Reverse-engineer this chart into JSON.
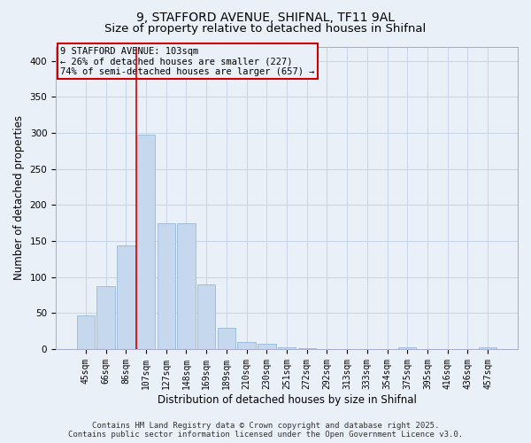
{
  "title_line1": "9, STAFFORD AVENUE, SHIFNAL, TF11 9AL",
  "title_line2": "Size of property relative to detached houses in Shifnal",
  "xlabel": "Distribution of detached houses by size in Shifnal",
  "ylabel": "Number of detached properties",
  "background_color": "#eaf0f8",
  "bar_color": "#c5d8ee",
  "bar_edge_color": "#8baed4",
  "vline_color": "#cc0000",
  "vline_x_index": 3,
  "categories": [
    "45sqm",
    "66sqm",
    "86sqm",
    "107sqm",
    "127sqm",
    "148sqm",
    "169sqm",
    "189sqm",
    "210sqm",
    "230sqm",
    "251sqm",
    "272sqm",
    "292sqm",
    "313sqm",
    "333sqm",
    "354sqm",
    "375sqm",
    "395sqm",
    "416sqm",
    "436sqm",
    "457sqm"
  ],
  "values": [
    47,
    87,
    144,
    298,
    175,
    175,
    90,
    30,
    10,
    7,
    3,
    1,
    0,
    0,
    0,
    0,
    2,
    0,
    0,
    0,
    2
  ],
  "ylim": [
    0,
    420
  ],
  "yticks": [
    0,
    50,
    100,
    150,
    200,
    250,
    300,
    350,
    400
  ],
  "annotation_line1": "9 STAFFORD AVENUE: 103sqm",
  "annotation_line2": "← 26% of detached houses are smaller (227)",
  "annotation_line3": "74% of semi-detached houses are larger (657) →",
  "footer_line1": "Contains HM Land Registry data © Crown copyright and database right 2025.",
  "footer_line2": "Contains public sector information licensed under the Open Government Licence v3.0.",
  "grid_color": "#c8d4e8",
  "title_fontsize": 10,
  "subtitle_fontsize": 9.5,
  "tick_fontsize": 7,
  "label_fontsize": 8.5,
  "footer_fontsize": 6.5,
  "annot_fontsize": 7.5
}
